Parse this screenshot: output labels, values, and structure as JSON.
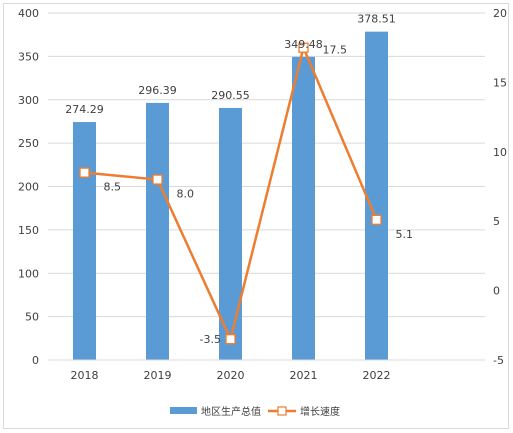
{
  "chart_data": {
    "type": "bar",
    "categories": [
      "2018",
      "2019",
      "2020",
      "2021",
      "2022"
    ],
    "series": [
      {
        "name": "地区生产总值",
        "type": "bar",
        "axis": "left",
        "values": [
          274.29,
          296.39,
          290.55,
          349.48,
          378.51
        ],
        "labels": [
          "274.29",
          "296.39",
          "290.55",
          "349.48",
          "378.51"
        ],
        "color": "#5b9bd5"
      },
      {
        "name": "增长速度",
        "type": "line",
        "axis": "right",
        "values": [
          8.5,
          8.0,
          -3.5,
          17.5,
          5.1
        ],
        "labels": [
          "8.5",
          "8.0",
          "-3.5",
          "17.5",
          "5.1"
        ],
        "color": "#ed7d31"
      }
    ],
    "y_left": {
      "range": [
        0,
        400
      ],
      "ticks": [
        "0",
        "50",
        "100",
        "150",
        "200",
        "250",
        "300",
        "350",
        "400"
      ]
    },
    "y_right": {
      "range": [
        -5,
        20
      ],
      "ticks": [
        "-5",
        "0",
        "5",
        "10",
        "15",
        "20"
      ]
    },
    "grid": true,
    "legend": "bottom-center",
    "title": "",
    "xlabel": "",
    "ylabel": ""
  }
}
